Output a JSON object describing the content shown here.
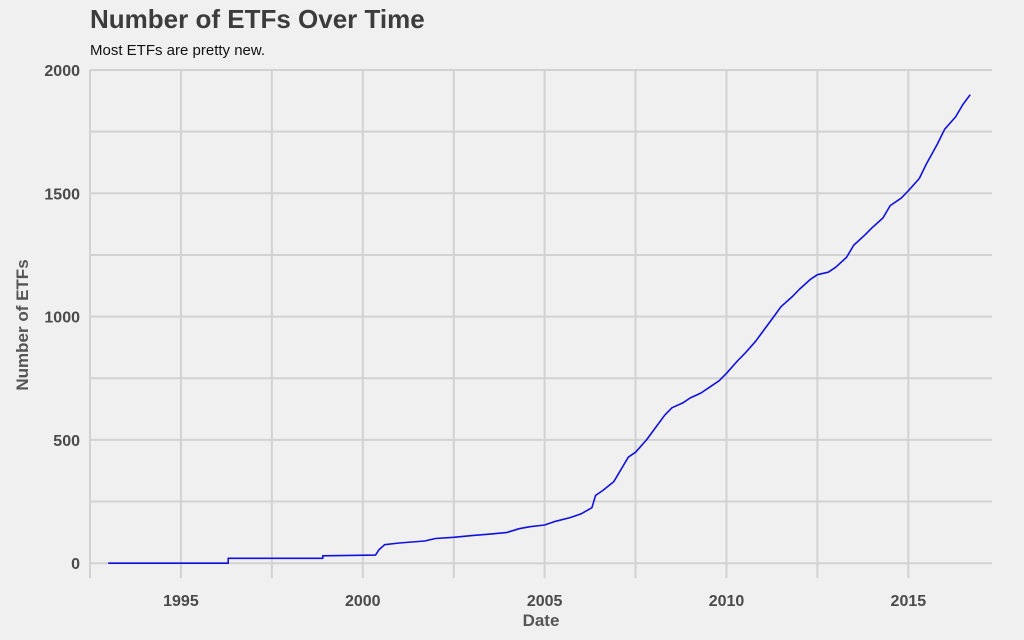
{
  "chart_data": {
    "type": "line",
    "title": "Number of ETFs Over Time",
    "subtitle": "Most ETFs are pretty new.",
    "xlabel": "Date",
    "ylabel": "Number of ETFs",
    "xlim": [
      1992.5,
      2017.3
    ],
    "ylim": [
      -60,
      2000
    ],
    "x_ticks": [
      1995,
      2000,
      2005,
      2010,
      2015
    ],
    "y_ticks": [
      0,
      500,
      1000,
      1500,
      2000
    ],
    "grid": true,
    "line_color": "#1010e0",
    "series": [
      {
        "x": [
          1993.0,
          1996.3,
          1996.3,
          1998.9,
          1998.9,
          2000.35,
          2000.45,
          2000.6,
          2001.0,
          2001.7,
          2002.0,
          2002.5,
          2003.0,
          2003.5,
          2003.95,
          2004.3,
          2004.6,
          2005.0,
          2005.3,
          2005.7,
          2006.0,
          2006.3,
          2006.4,
          2006.6,
          2006.9,
          2007.1,
          2007.3,
          2007.5,
          2007.8,
          2008.0,
          2008.3,
          2008.5,
          2008.8,
          2009.0,
          2009.3,
          2009.5,
          2009.8,
          2010.0,
          2010.3,
          2010.5,
          2010.8,
          2011.0,
          2011.3,
          2011.5,
          2011.8,
          2012.0,
          2012.3,
          2012.5,
          2012.8,
          2013.0,
          2013.3,
          2013.5,
          2013.8,
          2014.0,
          2014.3,
          2014.5,
          2014.8,
          2015.0,
          2015.3,
          2015.5,
          2015.8,
          2016.0,
          2016.3,
          2016.5,
          2016.7
        ],
        "y": [
          0,
          0,
          20,
          20,
          30,
          33,
          55,
          75,
          82,
          90,
          100,
          105,
          112,
          118,
          124,
          140,
          148,
          155,
          170,
          185,
          200,
          225,
          275,
          295,
          330,
          380,
          430,
          450,
          500,
          540,
          600,
          630,
          650,
          670,
          690,
          710,
          740,
          770,
          820,
          850,
          900,
          940,
          1000,
          1040,
          1080,
          1110,
          1150,
          1170,
          1180,
          1200,
          1240,
          1290,
          1330,
          1360,
          1400,
          1450,
          1480,
          1510,
          1560,
          1620,
          1700,
          1760,
          1810,
          1860,
          1900
        ]
      }
    ]
  }
}
